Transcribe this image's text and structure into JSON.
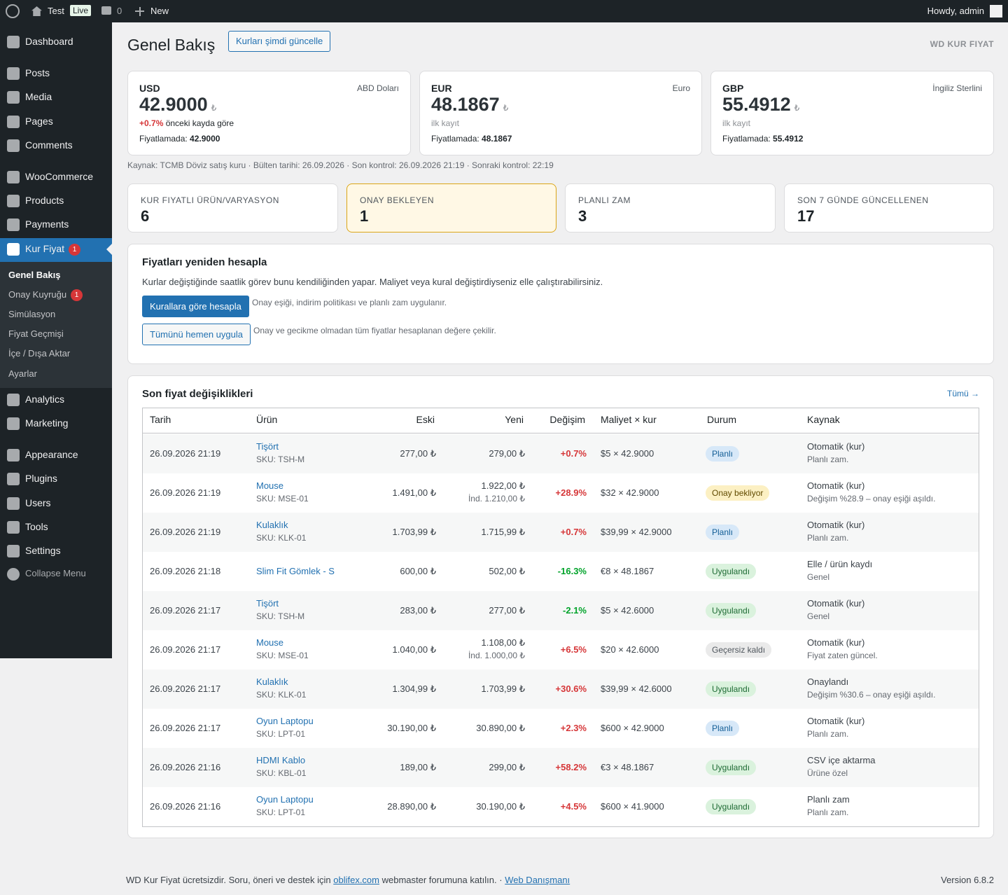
{
  "admin_bar": {
    "site": "Test",
    "live": "Live",
    "comments": "0",
    "new": "New",
    "howdy": "Howdy, admin"
  },
  "menu": {
    "items": [
      {
        "label": "Dashboard"
      },
      {
        "label": "Posts"
      },
      {
        "label": "Media"
      },
      {
        "label": "Pages"
      },
      {
        "label": "Comments"
      },
      {
        "label": "WooCommerce"
      },
      {
        "label": "Products"
      },
      {
        "label": "Payments"
      },
      {
        "label": "Kur Fiyat",
        "badge": "1"
      },
      {
        "label": "Analytics"
      },
      {
        "label": "Marketing"
      },
      {
        "label": "Appearance"
      },
      {
        "label": "Plugins"
      },
      {
        "label": "Users"
      },
      {
        "label": "Tools"
      },
      {
        "label": "Settings"
      },
      {
        "label": "Collapse Menu"
      }
    ],
    "submenu": [
      {
        "label": "Genel Bakış"
      },
      {
        "label": "Onay Kuyruğu",
        "badge": "1"
      },
      {
        "label": "Simülasyon"
      },
      {
        "label": "Fiyat Geçmişi"
      },
      {
        "label": "İçe / Dışa Aktar"
      },
      {
        "label": "Ayarlar"
      }
    ]
  },
  "header": {
    "title": "Genel Bakış",
    "button": "Kurları şimdi güncelle",
    "brand": "WD KUR FIYAT"
  },
  "rates": [
    {
      "code": "USD",
      "name": "ABD Doları",
      "value": "42.9000",
      "symbol": "₺",
      "change": "+0.7%",
      "note": "önceki kayda göre",
      "pricing_label": "Fiyatlamada:",
      "pricing_value": "42.9000"
    },
    {
      "code": "EUR",
      "name": "Euro",
      "value": "48.1867",
      "symbol": "₺",
      "note": "ilk kayıt",
      "pricing_label": "Fiyatlamada:",
      "pricing_value": "48.1867"
    },
    {
      "code": "GBP",
      "name": "İngiliz Sterlini",
      "value": "55.4912",
      "symbol": "₺",
      "note": "ilk kayıt",
      "pricing_label": "Fiyatlamada:",
      "pricing_value": "55.4912"
    }
  ],
  "source_line": "Kaynak: TCMB Döviz satış kuru · Bülten tarihi: 26.09.2026 · Son kontrol: 26.09.2026 21:19 · Sonraki kontrol: 22:19",
  "stats": [
    {
      "label": "KUR FIYATLI ÜRÜN/VARYASYON",
      "value": "6"
    },
    {
      "label": "ONAY BEKLEYEN",
      "value": "1"
    },
    {
      "label": "PLANLI ZAM",
      "value": "3"
    },
    {
      "label": "SON 7 GÜNDE GÜNCELLENEN",
      "value": "17"
    }
  ],
  "recalc": {
    "title": "Fiyatları yeniden hesapla",
    "description": "Kurlar değiştiğinde saatlik görev bunu kendiliğinden yapar. Maliyet veya kural değiştirdiyseniz elle çalıştırabilirsiniz.",
    "buttons": [
      {
        "label": "Kurallara göre hesapla",
        "note": "Onay eşiği, indirim politikası ve planlı zam uygulanır."
      },
      {
        "label": "Tümünü hemen uygula",
        "note": "Onay ve gecikme olmadan tüm fiyatlar hesaplanan değere çekilir."
      }
    ]
  },
  "changes": {
    "title": "Son fiyat değişiklikleri",
    "link": "Tümü →",
    "columns": [
      "Tarih",
      "Ürün",
      "Eski",
      "Yeni",
      "Değişim",
      "Maliyet × kur",
      "Durum",
      "Kaynak"
    ],
    "rows": [
      {
        "date": "26.09.2026 21:19",
        "product": "Tişört",
        "sku": "SKU: TSH-M",
        "old": "277,00 ₺",
        "new": "279,00 ₺",
        "change": "+0.7%",
        "cost": "$5 × 42.9000",
        "status": "Planlı",
        "status_bg": "#d7e8f8",
        "status_fg": "#135e96",
        "source": "Otomatik (kur)",
        "source_sub": "Planlı zam."
      },
      {
        "date": "26.09.2026 21:19",
        "product": "Mouse",
        "sku": "SKU: MSE-01",
        "old": "1.491,00 ₺",
        "new": "1.922,00 ₺",
        "new_sub": "İnd. 1.210,00 ₺",
        "change": "+28.9%",
        "cost": "$32 × 42.9000",
        "status": "Onay bekliyor",
        "status_bg": "#fcf0c3",
        "status_fg": "#614a00",
        "source": "Otomatik (kur)",
        "source_sub": "Değişim %28.9 – onay eşiği aşıldı."
      },
      {
        "date": "26.09.2026 21:19",
        "product": "Kulaklık",
        "sku": "SKU: KLK-01",
        "old": "1.703,99 ₺",
        "new": "1.715,99 ₺",
        "change": "+0.7%",
        "cost": "$39,99 × 42.9000",
        "status": "Planlı",
        "status_bg": "#d7e8f8",
        "status_fg": "#135e96",
        "source": "Otomatik (kur)",
        "source_sub": "Planlı zam."
      },
      {
        "date": "26.09.2026 21:18",
        "product": "Slim Fit Gömlek - S",
        "old": "600,00 ₺",
        "new": "502,00 ₺",
        "change": "-16.3%",
        "cost": "€8 × 48.1867",
        "status": "Uygulandı",
        "status_bg": "#daf2dd",
        "status_fg": "#1e6b34",
        "source": "Elle / ürün kaydı",
        "source_sub": "Genel"
      },
      {
        "date": "26.09.2026 21:17",
        "product": "Tişört",
        "sku": "SKU: TSH-M",
        "old": "283,00 ₺",
        "new": "277,00 ₺",
        "change": "-2.1%",
        "cost": "$5 × 42.6000",
        "status": "Uygulandı",
        "status_bg": "#daf2dd",
        "status_fg": "#1e6b34",
        "source": "Otomatik (kur)",
        "source_sub": "Genel"
      },
      {
        "date": "26.09.2026 21:17",
        "product": "Mouse",
        "sku": "SKU: MSE-01",
        "old": "1.040,00 ₺",
        "new": "1.108,00 ₺",
        "new_sub": "İnd. 1.000,00 ₺",
        "change": "+6.5%",
        "cost": "$20 × 42.6000",
        "status": "Geçersiz kaldı",
        "status_bg": "#eaeaea",
        "status_fg": "#50575e",
        "source": "Otomatik (kur)",
        "source_sub": "Fiyat zaten güncel."
      },
      {
        "date": "26.09.2026 21:17",
        "product": "Kulaklık",
        "sku": "SKU: KLK-01",
        "old": "1.304,99 ₺",
        "new": "1.703,99 ₺",
        "change": "+30.6%",
        "cost": "$39,99 × 42.6000",
        "status": "Uygulandı",
        "status_bg": "#daf2dd",
        "status_fg": "#1e6b34",
        "source": "Onaylandı",
        "source_sub": "Değişim %30.6 – onay eşiği aşıldı."
      },
      {
        "date": "26.09.2026 21:17",
        "product": "Oyun Laptopu",
        "sku": "SKU: LPT-01",
        "old": "30.190,00 ₺",
        "new": "30.890,00 ₺",
        "change": "+2.3%",
        "cost": "$600 × 42.9000",
        "status": "Planlı",
        "status_bg": "#d7e8f8",
        "status_fg": "#135e96",
        "source": "Otomatik (kur)",
        "source_sub": "Planlı zam."
      },
      {
        "date": "26.09.2026 21:16",
        "product": "HDMI Kablo",
        "sku": "SKU: KBL-01",
        "old": "189,00 ₺",
        "new": "299,00 ₺",
        "change": "+58.2%",
        "cost": "€3 × 48.1867",
        "status": "Uygulandı",
        "status_bg": "#daf2dd",
        "status_fg": "#1e6b34",
        "source": "CSV içe aktarma",
        "source_sub": "Ürüne özel"
      },
      {
        "date": "26.09.2026 21:16",
        "product": "Oyun Laptopu",
        "sku": "SKU: LPT-01",
        "old": "28.890,00 ₺",
        "new": "30.190,00 ₺",
        "change": "+4.5%",
        "cost": "$600 × 41.9000",
        "status": "Uygulandı",
        "status_bg": "#daf2dd",
        "status_fg": "#1e6b34",
        "source": "Planlı zam",
        "source_sub": "Planlı zam."
      }
    ]
  },
  "footer": {
    "text_1": "WD Kur Fiyat ücretsizdir. Soru, öneri ve destek için",
    "link_1": "oblifex.com",
    "text_2": "webmaster forumuna katılın. ·",
    "link_2": "Web Danışmanı",
    "version": "Version 6.8.2"
  }
}
